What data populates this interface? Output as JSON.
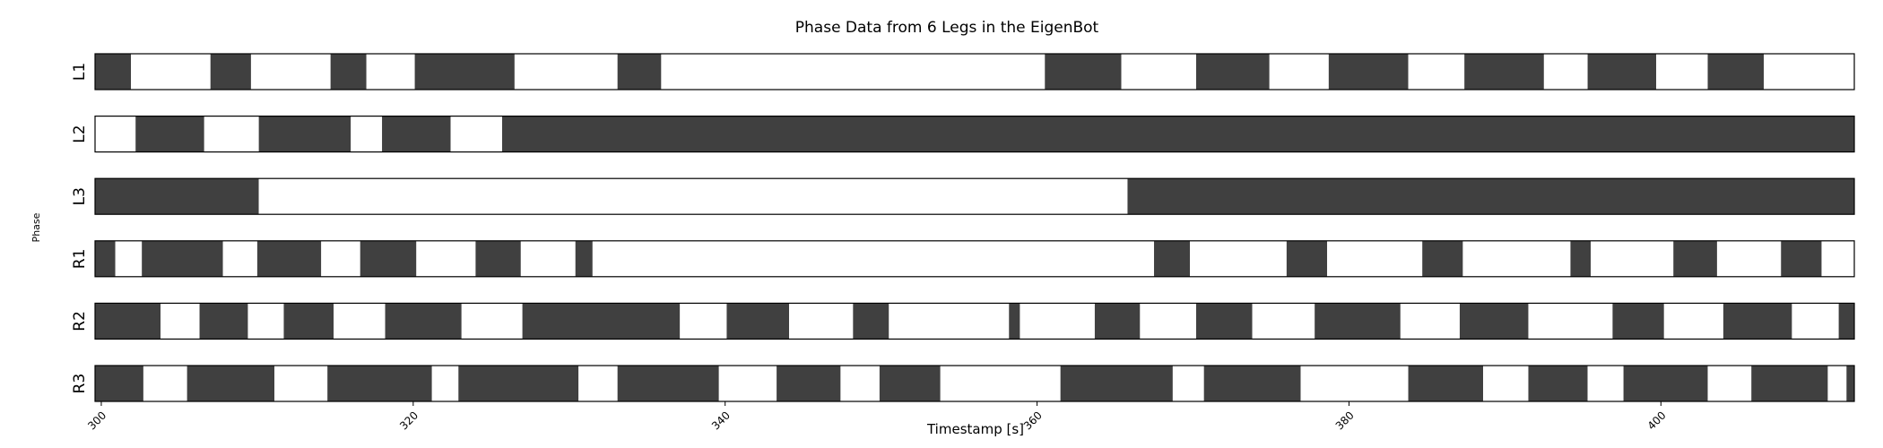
{
  "chart_data": {
    "type": "broken_barh",
    "title": "Phase Data from 6 Legs in the EigenBot",
    "xlabel": "Timestamp [s]",
    "ylabel": "Phase",
    "xlim": [
      299.6,
      412.4
    ],
    "xticks": [
      300,
      320,
      340,
      360,
      380,
      400
    ],
    "colors": {
      "dark": "#404040",
      "light": "#ffffff",
      "edge": "#000000"
    },
    "legs": [
      {
        "name": "L1",
        "segments": [
          [
            299.6,
            301.9,
            "dark"
          ],
          [
            301.9,
            307.0,
            "light"
          ],
          [
            307.0,
            309.6,
            "dark"
          ],
          [
            309.6,
            314.7,
            "light"
          ],
          [
            314.7,
            317.0,
            "dark"
          ],
          [
            317.0,
            320.1,
            "light"
          ],
          [
            320.1,
            326.5,
            "dark"
          ],
          [
            326.5,
            333.1,
            "light"
          ],
          [
            333.1,
            335.9,
            "dark"
          ],
          [
            335.9,
            360.5,
            "light"
          ],
          [
            360.5,
            365.4,
            "dark"
          ],
          [
            365.4,
            370.2,
            "light"
          ],
          [
            370.2,
            374.9,
            "dark"
          ],
          [
            374.9,
            378.7,
            "light"
          ],
          [
            378.7,
            383.8,
            "dark"
          ],
          [
            383.8,
            387.4,
            "light"
          ],
          [
            387.4,
            392.5,
            "dark"
          ],
          [
            392.5,
            395.3,
            "light"
          ],
          [
            395.3,
            399.7,
            "dark"
          ],
          [
            399.7,
            403.0,
            "light"
          ],
          [
            403.0,
            406.6,
            "dark"
          ],
          [
            406.6,
            412.4,
            "light"
          ]
        ]
      },
      {
        "name": "L2",
        "segments": [
          [
            299.6,
            302.2,
            "light"
          ],
          [
            302.2,
            306.6,
            "dark"
          ],
          [
            306.6,
            310.1,
            "light"
          ],
          [
            310.1,
            316.0,
            "dark"
          ],
          [
            316.0,
            318.0,
            "light"
          ],
          [
            318.0,
            322.4,
            "dark"
          ],
          [
            322.4,
            325.7,
            "light"
          ],
          [
            325.7,
            412.4,
            "dark"
          ]
        ]
      },
      {
        "name": "L3",
        "segments": [
          [
            299.6,
            310.1,
            "dark"
          ],
          [
            310.1,
            365.8,
            "light"
          ],
          [
            365.8,
            412.4,
            "dark"
          ]
        ]
      },
      {
        "name": "R1",
        "segments": [
          [
            299.6,
            300.9,
            "dark"
          ],
          [
            300.9,
            302.6,
            "light"
          ],
          [
            302.6,
            307.8,
            "dark"
          ],
          [
            307.8,
            310.0,
            "light"
          ],
          [
            310.0,
            314.1,
            "dark"
          ],
          [
            314.1,
            316.6,
            "light"
          ],
          [
            316.6,
            320.2,
            "dark"
          ],
          [
            320.2,
            324.0,
            "light"
          ],
          [
            324.0,
            326.9,
            "dark"
          ],
          [
            326.9,
            330.4,
            "light"
          ],
          [
            330.4,
            331.5,
            "dark"
          ],
          [
            331.5,
            367.5,
            "light"
          ],
          [
            367.5,
            369.8,
            "dark"
          ],
          [
            369.8,
            376.0,
            "light"
          ],
          [
            376.0,
            378.6,
            "dark"
          ],
          [
            378.6,
            384.7,
            "light"
          ],
          [
            384.7,
            387.3,
            "dark"
          ],
          [
            387.3,
            394.2,
            "light"
          ],
          [
            394.2,
            395.5,
            "dark"
          ],
          [
            395.5,
            400.8,
            "light"
          ],
          [
            400.8,
            403.6,
            "dark"
          ],
          [
            403.6,
            407.7,
            "light"
          ],
          [
            407.7,
            410.3,
            "dark"
          ],
          [
            410.3,
            412.4,
            "light"
          ]
        ]
      },
      {
        "name": "R2",
        "segments": [
          [
            299.6,
            303.8,
            "dark"
          ],
          [
            303.8,
            306.3,
            "light"
          ],
          [
            306.3,
            309.4,
            "dark"
          ],
          [
            309.4,
            311.7,
            "light"
          ],
          [
            311.7,
            314.9,
            "dark"
          ],
          [
            314.9,
            318.2,
            "light"
          ],
          [
            318.2,
            323.1,
            "dark"
          ],
          [
            323.1,
            327.0,
            "light"
          ],
          [
            327.0,
            337.1,
            "dark"
          ],
          [
            337.1,
            340.1,
            "light"
          ],
          [
            340.1,
            344.1,
            "dark"
          ],
          [
            344.1,
            348.2,
            "light"
          ],
          [
            348.2,
            350.5,
            "dark"
          ],
          [
            350.5,
            358.2,
            "light"
          ],
          [
            358.2,
            358.9,
            "dark"
          ],
          [
            358.9,
            363.7,
            "light"
          ],
          [
            363.7,
            366.6,
            "dark"
          ],
          [
            366.6,
            370.2,
            "light"
          ],
          [
            370.2,
            373.8,
            "dark"
          ],
          [
            373.8,
            377.8,
            "light"
          ],
          [
            377.8,
            383.3,
            "dark"
          ],
          [
            383.3,
            387.1,
            "light"
          ],
          [
            387.1,
            391.5,
            "dark"
          ],
          [
            391.5,
            396.9,
            "light"
          ],
          [
            396.9,
            400.2,
            "dark"
          ],
          [
            400.2,
            404.0,
            "light"
          ],
          [
            404.0,
            408.4,
            "dark"
          ],
          [
            408.4,
            411.4,
            "light"
          ],
          [
            411.4,
            412.4,
            "dark"
          ]
        ]
      },
      {
        "name": "R3",
        "segments": [
          [
            299.6,
            302.7,
            "dark"
          ],
          [
            302.7,
            305.5,
            "light"
          ],
          [
            305.5,
            311.1,
            "dark"
          ],
          [
            311.1,
            314.5,
            "light"
          ],
          [
            314.5,
            321.2,
            "dark"
          ],
          [
            321.2,
            322.9,
            "light"
          ],
          [
            322.9,
            330.6,
            "dark"
          ],
          [
            330.6,
            333.1,
            "light"
          ],
          [
            333.1,
            339.6,
            "dark"
          ],
          [
            339.6,
            343.3,
            "light"
          ],
          [
            343.3,
            347.4,
            "dark"
          ],
          [
            347.4,
            349.9,
            "light"
          ],
          [
            349.9,
            353.8,
            "dark"
          ],
          [
            353.8,
            361.5,
            "light"
          ],
          [
            361.5,
            368.7,
            "dark"
          ],
          [
            368.7,
            370.7,
            "light"
          ],
          [
            370.7,
            376.9,
            "dark"
          ],
          [
            376.9,
            383.8,
            "light"
          ],
          [
            383.8,
            388.6,
            "dark"
          ],
          [
            388.6,
            391.5,
            "light"
          ],
          [
            391.5,
            395.3,
            "dark"
          ],
          [
            395.3,
            397.6,
            "light"
          ],
          [
            397.6,
            403.0,
            "dark"
          ],
          [
            403.0,
            405.8,
            "light"
          ],
          [
            405.8,
            410.7,
            "dark"
          ],
          [
            410.7,
            411.9,
            "light"
          ],
          [
            411.9,
            412.4,
            "dark"
          ]
        ]
      }
    ]
  }
}
